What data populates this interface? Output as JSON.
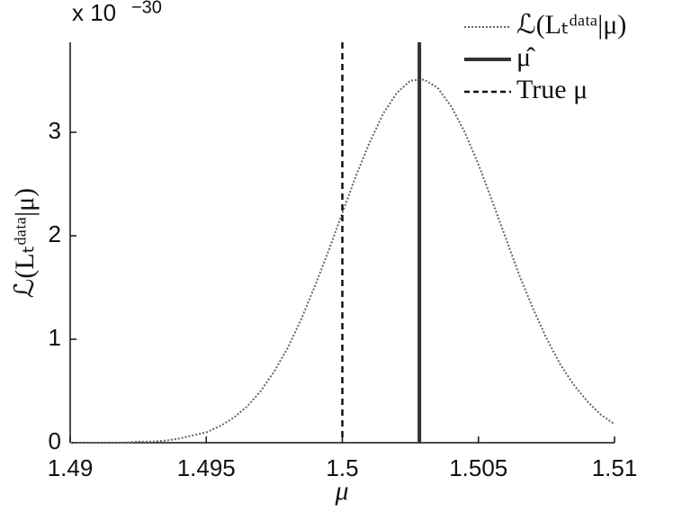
{
  "chart_data": {
    "type": "line",
    "xlabel": "μ",
    "ylabel": "ℒ(Lₜᵈᵃᵗᵃ|μ)",
    "y_exponent_base": "x 10",
    "y_exponent_power": "−30",
    "x": [
      1.49,
      1.4905,
      1.491,
      1.4915,
      1.492,
      1.4925,
      1.493,
      1.4935,
      1.494,
      1.4945,
      1.495,
      1.4955,
      1.496,
      1.4965,
      1.497,
      1.4975,
      1.498,
      1.4985,
      1.499,
      1.4995,
      1.5,
      1.5005,
      1.501,
      1.5015,
      1.502,
      1.5025,
      1.503,
      1.5035,
      1.504,
      1.5045,
      1.505,
      1.5055,
      1.506,
      1.5065,
      1.507,
      1.5075,
      1.508,
      1.5085,
      1.509,
      1.5095,
      1.51
    ],
    "series": [
      {
        "name": "ℒ(Lₜᵈᵃᵗᵃ|μ)",
        "color": "#666666",
        "values": [
          0,
          0,
          0,
          0,
          0,
          0.01,
          0.01,
          0.02,
          0.04,
          0.07,
          0.1,
          0.16,
          0.24,
          0.35,
          0.5,
          0.69,
          0.92,
          1.2,
          1.52,
          1.86,
          2.22,
          2.58,
          2.9,
          3.18,
          3.38,
          3.5,
          3.51,
          3.43,
          3.25,
          3,
          2.69,
          2.34,
          1.98,
          1.62,
          1.3,
          1.01,
          0.76,
          0.56,
          0.4,
          0.27,
          0.18
        ]
      }
    ],
    "vlines": [
      {
        "name": "μ̂",
        "x": 1.50283,
        "color": "#333333",
        "style": "solid"
      },
      {
        "name": "True μ",
        "x": 1.5,
        "color": "#111111",
        "style": "dashed"
      }
    ],
    "xlim": [
      1.49,
      1.51
    ],
    "ylim": [
      0,
      3.87
    ],
    "xticks": [
      1.49,
      1.495,
      1.5,
      1.505,
      1.51
    ],
    "yticks": [
      0,
      1,
      2,
      3
    ],
    "legend": "top-right"
  }
}
